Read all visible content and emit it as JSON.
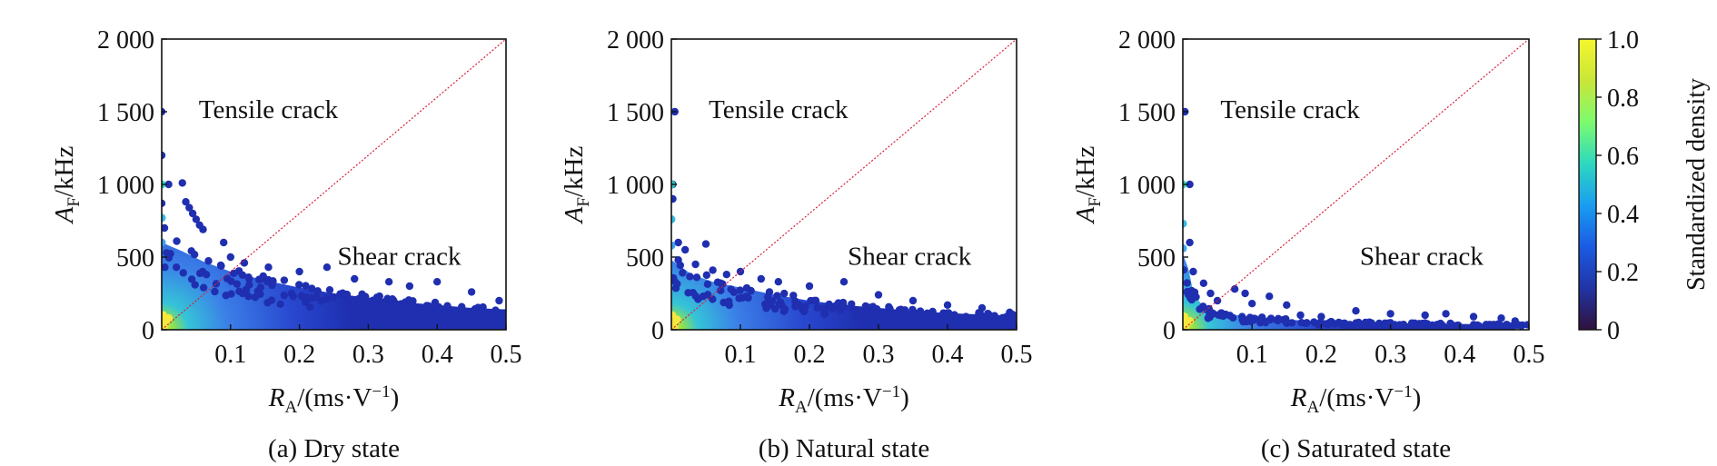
{
  "chart_data": [
    {
      "type": "heatmap",
      "caption": "(a) Dry state",
      "ylabel_main": "A",
      "ylabel_sub": "F",
      "ylabel_unit": "/kHz",
      "xlabel_main": "R",
      "xlabel_sub": "A",
      "xlabel_unit": "/(ms·V",
      "xlabel_exp": "−1",
      "xlabel_close": ")",
      "xlim": [
        0,
        0.5
      ],
      "ylim": [
        0,
        2000
      ],
      "xticks": [
        0.1,
        0.2,
        0.3,
        0.4,
        0.5
      ],
      "xtick_labels": [
        "0.1",
        "0.2",
        "0.3",
        "0.4",
        "0.5"
      ],
      "yticks": [
        0,
        500,
        1000,
        1500,
        2000
      ],
      "ytick_labels": [
        "0",
        "500",
        "1 000",
        "1 500",
        "2 000"
      ],
      "annotations": [
        {
          "text": "Tensile crack",
          "x": 0.155,
          "y": 1520
        },
        {
          "text": "Shear crack",
          "x": 0.345,
          "y": 510
        }
      ],
      "diagonal": {
        "from": [
          0,
          0
        ],
        "to": [
          0.5,
          2000
        ]
      },
      "envelope": [
        [
          0.0,
          600
        ],
        [
          0.03,
          540
        ],
        [
          0.06,
          470
        ],
        [
          0.1,
          400
        ],
        [
          0.15,
          340
        ],
        [
          0.2,
          290
        ],
        [
          0.25,
          250
        ],
        [
          0.3,
          220
        ],
        [
          0.35,
          190
        ],
        [
          0.4,
          170
        ],
        [
          0.45,
          150
        ],
        [
          0.5,
          140
        ]
      ],
      "outliers": [
        [
          0.0,
          1500
        ],
        [
          0.0,
          1200
        ],
        [
          0.0,
          1000
        ],
        [
          0.0,
          870
        ],
        [
          0.0,
          770
        ],
        [
          0.004,
          700
        ],
        [
          0.01,
          1000
        ],
        [
          0.03,
          1010
        ],
        [
          0.035,
          880
        ],
        [
          0.04,
          840
        ],
        [
          0.045,
          800
        ],
        [
          0.05,
          760
        ],
        [
          0.055,
          720
        ],
        [
          0.06,
          690
        ],
        [
          0.09,
          600
        ],
        [
          0.1,
          500
        ],
        [
          0.12,
          460
        ],
        [
          0.155,
          430
        ],
        [
          0.2,
          400
        ],
        [
          0.24,
          430
        ],
        [
          0.28,
          350
        ],
        [
          0.33,
          330
        ],
        [
          0.36,
          300
        ],
        [
          0.4,
          330
        ],
        [
          0.45,
          260
        ],
        [
          0.49,
          200
        ]
      ],
      "dense_points": [
        [
          0.0,
          1000
        ],
        [
          0.0,
          770
        ],
        [
          0.0,
          600
        ],
        [
          0.002,
          100
        ],
        [
          0.004,
          30
        ],
        [
          0.01,
          80
        ],
        [
          0.006,
          60
        ]
      ]
    },
    {
      "type": "heatmap",
      "caption": "(b) Natural state",
      "ylabel_main": "A",
      "ylabel_sub": "F",
      "ylabel_unit": "/kHz",
      "xlabel_main": "R",
      "xlabel_sub": "A",
      "xlabel_unit": "/(ms·V",
      "xlabel_exp": "−1",
      "xlabel_close": ")",
      "xlim": [
        0,
        0.5
      ],
      "ylim": [
        0,
        2000
      ],
      "xticks": [
        0.1,
        0.2,
        0.3,
        0.4,
        0.5
      ],
      "xtick_labels": [
        "0.1",
        "0.2",
        "0.3",
        "0.4",
        "0.5"
      ],
      "yticks": [
        0,
        500,
        1000,
        1500,
        2000
      ],
      "ytick_labels": [
        "0",
        "500",
        "1 000",
        "1 500",
        "2 000"
      ],
      "annotations": [
        {
          "text": "Tensile crack",
          "x": 0.155,
          "y": 1520
        },
        {
          "text": "Shear crack",
          "x": 0.345,
          "y": 510
        }
      ],
      "diagonal": {
        "from": [
          0,
          0
        ],
        "to": [
          0.5,
          2000
        ]
      },
      "envelope": [
        [
          0.0,
          480
        ],
        [
          0.03,
          380
        ],
        [
          0.06,
          330
        ],
        [
          0.1,
          290
        ],
        [
          0.15,
          240
        ],
        [
          0.2,
          200
        ],
        [
          0.25,
          170
        ],
        [
          0.3,
          150
        ],
        [
          0.35,
          130
        ],
        [
          0.4,
          115
        ],
        [
          0.45,
          105
        ],
        [
          0.5,
          95
        ]
      ],
      "outliers": [
        [
          0.005,
          1500
        ],
        [
          0.002,
          1000
        ],
        [
          0.002,
          900
        ],
        [
          0.01,
          600
        ],
        [
          0.01,
          480
        ],
        [
          0.02,
          550
        ],
        [
          0.035,
          450
        ],
        [
          0.05,
          590
        ],
        [
          0.06,
          410
        ],
        [
          0.08,
          380
        ],
        [
          0.1,
          400
        ],
        [
          0.13,
          350
        ],
        [
          0.155,
          330
        ],
        [
          0.2,
          300
        ],
        [
          0.25,
          330
        ],
        [
          0.3,
          240
        ],
        [
          0.35,
          200
        ],
        [
          0.4,
          170
        ],
        [
          0.45,
          150
        ],
        [
          0.49,
          120
        ]
      ],
      "dense_points": [
        [
          0.0,
          1000
        ],
        [
          0.0,
          760
        ],
        [
          0.0,
          580
        ],
        [
          0.001,
          100
        ],
        [
          0.004,
          40
        ],
        [
          0.008,
          70
        ],
        [
          0.004,
          20
        ]
      ]
    },
    {
      "type": "heatmap",
      "caption": "(c) Saturated state",
      "ylabel_main": "A",
      "ylabel_sub": "F",
      "ylabel_unit": "/kHz",
      "xlabel_main": "R",
      "xlabel_sub": "A",
      "xlabel_unit": "/(ms·V",
      "xlabel_exp": "−1",
      "xlabel_close": ")",
      "xlim": [
        0,
        0.5
      ],
      "ylim": [
        0,
        2000
      ],
      "xticks": [
        0.1,
        0.2,
        0.3,
        0.4,
        0.5
      ],
      "xtick_labels": [
        "0.1",
        "0.2",
        "0.3",
        "0.4",
        "0.5"
      ],
      "yticks": [
        0,
        500,
        1000,
        1500,
        2000
      ],
      "ytick_labels": [
        "0",
        "500",
        "1 000",
        "1 500",
        "2 000"
      ],
      "annotations": [
        {
          "text": "Tensile crack",
          "x": 0.155,
          "y": 1520
        },
        {
          "text": "Shear crack",
          "x": 0.345,
          "y": 510
        }
      ],
      "diagonal": {
        "from": [
          0,
          0
        ],
        "to": [
          0.5,
          2000
        ]
      },
      "envelope": [
        [
          0.0,
          520
        ],
        [
          0.008,
          420
        ],
        [
          0.015,
          260
        ],
        [
          0.03,
          150
        ],
        [
          0.06,
          110
        ],
        [
          0.1,
          90
        ],
        [
          0.15,
          70
        ],
        [
          0.2,
          55
        ],
        [
          0.3,
          45
        ],
        [
          0.4,
          40
        ],
        [
          0.48,
          35
        ]
      ],
      "outliers": [
        [
          0.003,
          1500
        ],
        [
          0.01,
          1000
        ],
        [
          0.01,
          600
        ],
        [
          0.015,
          400
        ],
        [
          0.03,
          320
        ],
        [
          0.04,
          250
        ],
        [
          0.05,
          200
        ],
        [
          0.075,
          280
        ],
        [
          0.09,
          250
        ],
        [
          0.1,
          180
        ],
        [
          0.125,
          230
        ],
        [
          0.15,
          170
        ],
        [
          0.17,
          100
        ],
        [
          0.2,
          90
        ],
        [
          0.25,
          130
        ],
        [
          0.3,
          110
        ],
        [
          0.35,
          100
        ],
        [
          0.38,
          110
        ],
        [
          0.42,
          90
        ],
        [
          0.46,
          80
        ],
        [
          0.48,
          60
        ]
      ],
      "dense_points": [
        [
          0.0,
          1000
        ],
        [
          0.0,
          730
        ],
        [
          0.0,
          560
        ],
        [
          0.002,
          90
        ],
        [
          0.005,
          40
        ],
        [
          0.01,
          60
        ],
        [
          0.004,
          20
        ]
      ]
    }
  ],
  "colorbar": {
    "label": "Standardized density",
    "ticks": [
      0,
      0.2,
      0.4,
      0.6,
      0.8,
      1.0
    ],
    "tick_labels": [
      "0",
      "0.2",
      "0.4",
      "0.6",
      "0.8",
      "1.0"
    ],
    "colors": [
      "#30123b",
      "#2134a5",
      "#1b5be3",
      "#1a9df0",
      "#2ed8c0",
      "#7dfb6e",
      "#c9e638",
      "#f5f52f"
    ]
  },
  "colors": {
    "diagonal": "#d5203c",
    "sparse": "#1f2fb0",
    "mid": "#3b7fe8",
    "dense": "#f6e83c"
  }
}
